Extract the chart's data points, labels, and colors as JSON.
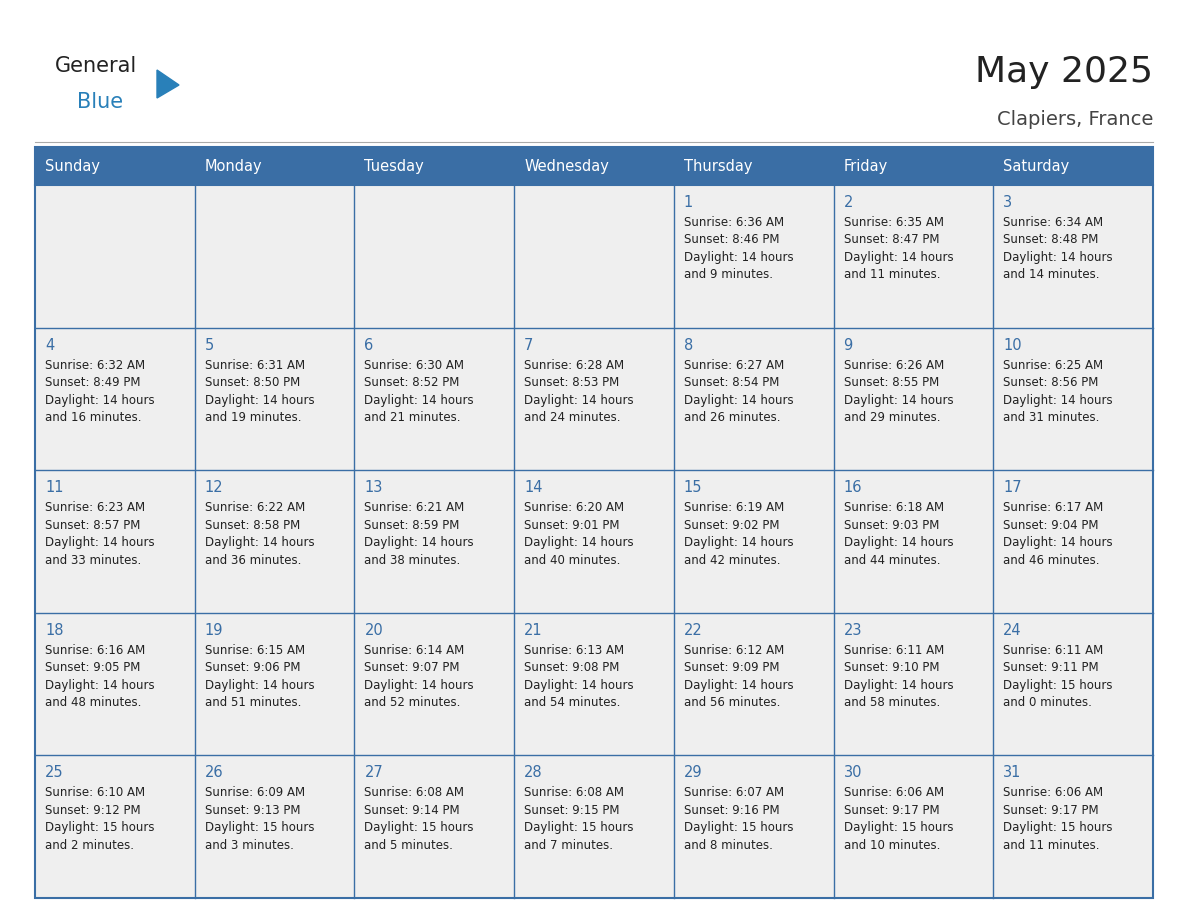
{
  "title": "May 2025",
  "subtitle": "Clapiers, France",
  "days_of_week": [
    "Sunday",
    "Monday",
    "Tuesday",
    "Wednesday",
    "Thursday",
    "Friday",
    "Saturday"
  ],
  "header_bg": "#3a6ea5",
  "header_text_color": "#ffffff",
  "cell_bg": "#efefef",
  "cell_border_color": "#3a6ea5",
  "day_number_color": "#3a6ea5",
  "text_color": "#222222",
  "title_color": "#222222",
  "subtitle_color": "#444444",
  "logo_general_color": "#222222",
  "logo_blue_color": "#2980b9",
  "weeks": [
    [
      {
        "day": "",
        "sunrise": "",
        "sunset": "",
        "daylight": ""
      },
      {
        "day": "",
        "sunrise": "",
        "sunset": "",
        "daylight": ""
      },
      {
        "day": "",
        "sunrise": "",
        "sunset": "",
        "daylight": ""
      },
      {
        "day": "",
        "sunrise": "",
        "sunset": "",
        "daylight": ""
      },
      {
        "day": "1",
        "sunrise": "6:36 AM",
        "sunset": "8:46 PM",
        "daylight_l1": "Daylight: 14 hours",
        "daylight_l2": "and 9 minutes."
      },
      {
        "day": "2",
        "sunrise": "6:35 AM",
        "sunset": "8:47 PM",
        "daylight_l1": "Daylight: 14 hours",
        "daylight_l2": "and 11 minutes."
      },
      {
        "day": "3",
        "sunrise": "6:34 AM",
        "sunset": "8:48 PM",
        "daylight_l1": "Daylight: 14 hours",
        "daylight_l2": "and 14 minutes."
      }
    ],
    [
      {
        "day": "4",
        "sunrise": "6:32 AM",
        "sunset": "8:49 PM",
        "daylight_l1": "Daylight: 14 hours",
        "daylight_l2": "and 16 minutes."
      },
      {
        "day": "5",
        "sunrise": "6:31 AM",
        "sunset": "8:50 PM",
        "daylight_l1": "Daylight: 14 hours",
        "daylight_l2": "and 19 minutes."
      },
      {
        "day": "6",
        "sunrise": "6:30 AM",
        "sunset": "8:52 PM",
        "daylight_l1": "Daylight: 14 hours",
        "daylight_l2": "and 21 minutes."
      },
      {
        "day": "7",
        "sunrise": "6:28 AM",
        "sunset": "8:53 PM",
        "daylight_l1": "Daylight: 14 hours",
        "daylight_l2": "and 24 minutes."
      },
      {
        "day": "8",
        "sunrise": "6:27 AM",
        "sunset": "8:54 PM",
        "daylight_l1": "Daylight: 14 hours",
        "daylight_l2": "and 26 minutes."
      },
      {
        "day": "9",
        "sunrise": "6:26 AM",
        "sunset": "8:55 PM",
        "daylight_l1": "Daylight: 14 hours",
        "daylight_l2": "and 29 minutes."
      },
      {
        "day": "10",
        "sunrise": "6:25 AM",
        "sunset": "8:56 PM",
        "daylight_l1": "Daylight: 14 hours",
        "daylight_l2": "and 31 minutes."
      }
    ],
    [
      {
        "day": "11",
        "sunrise": "6:23 AM",
        "sunset": "8:57 PM",
        "daylight_l1": "Daylight: 14 hours",
        "daylight_l2": "and 33 minutes."
      },
      {
        "day": "12",
        "sunrise": "6:22 AM",
        "sunset": "8:58 PM",
        "daylight_l1": "Daylight: 14 hours",
        "daylight_l2": "and 36 minutes."
      },
      {
        "day": "13",
        "sunrise": "6:21 AM",
        "sunset": "8:59 PM",
        "daylight_l1": "Daylight: 14 hours",
        "daylight_l2": "and 38 minutes."
      },
      {
        "day": "14",
        "sunrise": "6:20 AM",
        "sunset": "9:01 PM",
        "daylight_l1": "Daylight: 14 hours",
        "daylight_l2": "and 40 minutes."
      },
      {
        "day": "15",
        "sunrise": "6:19 AM",
        "sunset": "9:02 PM",
        "daylight_l1": "Daylight: 14 hours",
        "daylight_l2": "and 42 minutes."
      },
      {
        "day": "16",
        "sunrise": "6:18 AM",
        "sunset": "9:03 PM",
        "daylight_l1": "Daylight: 14 hours",
        "daylight_l2": "and 44 minutes."
      },
      {
        "day": "17",
        "sunrise": "6:17 AM",
        "sunset": "9:04 PM",
        "daylight_l1": "Daylight: 14 hours",
        "daylight_l2": "and 46 minutes."
      }
    ],
    [
      {
        "day": "18",
        "sunrise": "6:16 AM",
        "sunset": "9:05 PM",
        "daylight_l1": "Daylight: 14 hours",
        "daylight_l2": "and 48 minutes."
      },
      {
        "day": "19",
        "sunrise": "6:15 AM",
        "sunset": "9:06 PM",
        "daylight_l1": "Daylight: 14 hours",
        "daylight_l2": "and 51 minutes."
      },
      {
        "day": "20",
        "sunrise": "6:14 AM",
        "sunset": "9:07 PM",
        "daylight_l1": "Daylight: 14 hours",
        "daylight_l2": "and 52 minutes."
      },
      {
        "day": "21",
        "sunrise": "6:13 AM",
        "sunset": "9:08 PM",
        "daylight_l1": "Daylight: 14 hours",
        "daylight_l2": "and 54 minutes."
      },
      {
        "day": "22",
        "sunrise": "6:12 AM",
        "sunset": "9:09 PM",
        "daylight_l1": "Daylight: 14 hours",
        "daylight_l2": "and 56 minutes."
      },
      {
        "day": "23",
        "sunrise": "6:11 AM",
        "sunset": "9:10 PM",
        "daylight_l1": "Daylight: 14 hours",
        "daylight_l2": "and 58 minutes."
      },
      {
        "day": "24",
        "sunrise": "6:11 AM",
        "sunset": "9:11 PM",
        "daylight_l1": "Daylight: 15 hours",
        "daylight_l2": "and 0 minutes."
      }
    ],
    [
      {
        "day": "25",
        "sunrise": "6:10 AM",
        "sunset": "9:12 PM",
        "daylight_l1": "Daylight: 15 hours",
        "daylight_l2": "and 2 minutes."
      },
      {
        "day": "26",
        "sunrise": "6:09 AM",
        "sunset": "9:13 PM",
        "daylight_l1": "Daylight: 15 hours",
        "daylight_l2": "and 3 minutes."
      },
      {
        "day": "27",
        "sunrise": "6:08 AM",
        "sunset": "9:14 PM",
        "daylight_l1": "Daylight: 15 hours",
        "daylight_l2": "and 5 minutes."
      },
      {
        "day": "28",
        "sunrise": "6:08 AM",
        "sunset": "9:15 PM",
        "daylight_l1": "Daylight: 15 hours",
        "daylight_l2": "and 7 minutes."
      },
      {
        "day": "29",
        "sunrise": "6:07 AM",
        "sunset": "9:16 PM",
        "daylight_l1": "Daylight: 15 hours",
        "daylight_l2": "and 8 minutes."
      },
      {
        "day": "30",
        "sunrise": "6:06 AM",
        "sunset": "9:17 PM",
        "daylight_l1": "Daylight: 15 hours",
        "daylight_l2": "and 10 minutes."
      },
      {
        "day": "31",
        "sunrise": "6:06 AM",
        "sunset": "9:17 PM",
        "daylight_l1": "Daylight: 15 hours",
        "daylight_l2": "and 11 minutes."
      }
    ]
  ]
}
